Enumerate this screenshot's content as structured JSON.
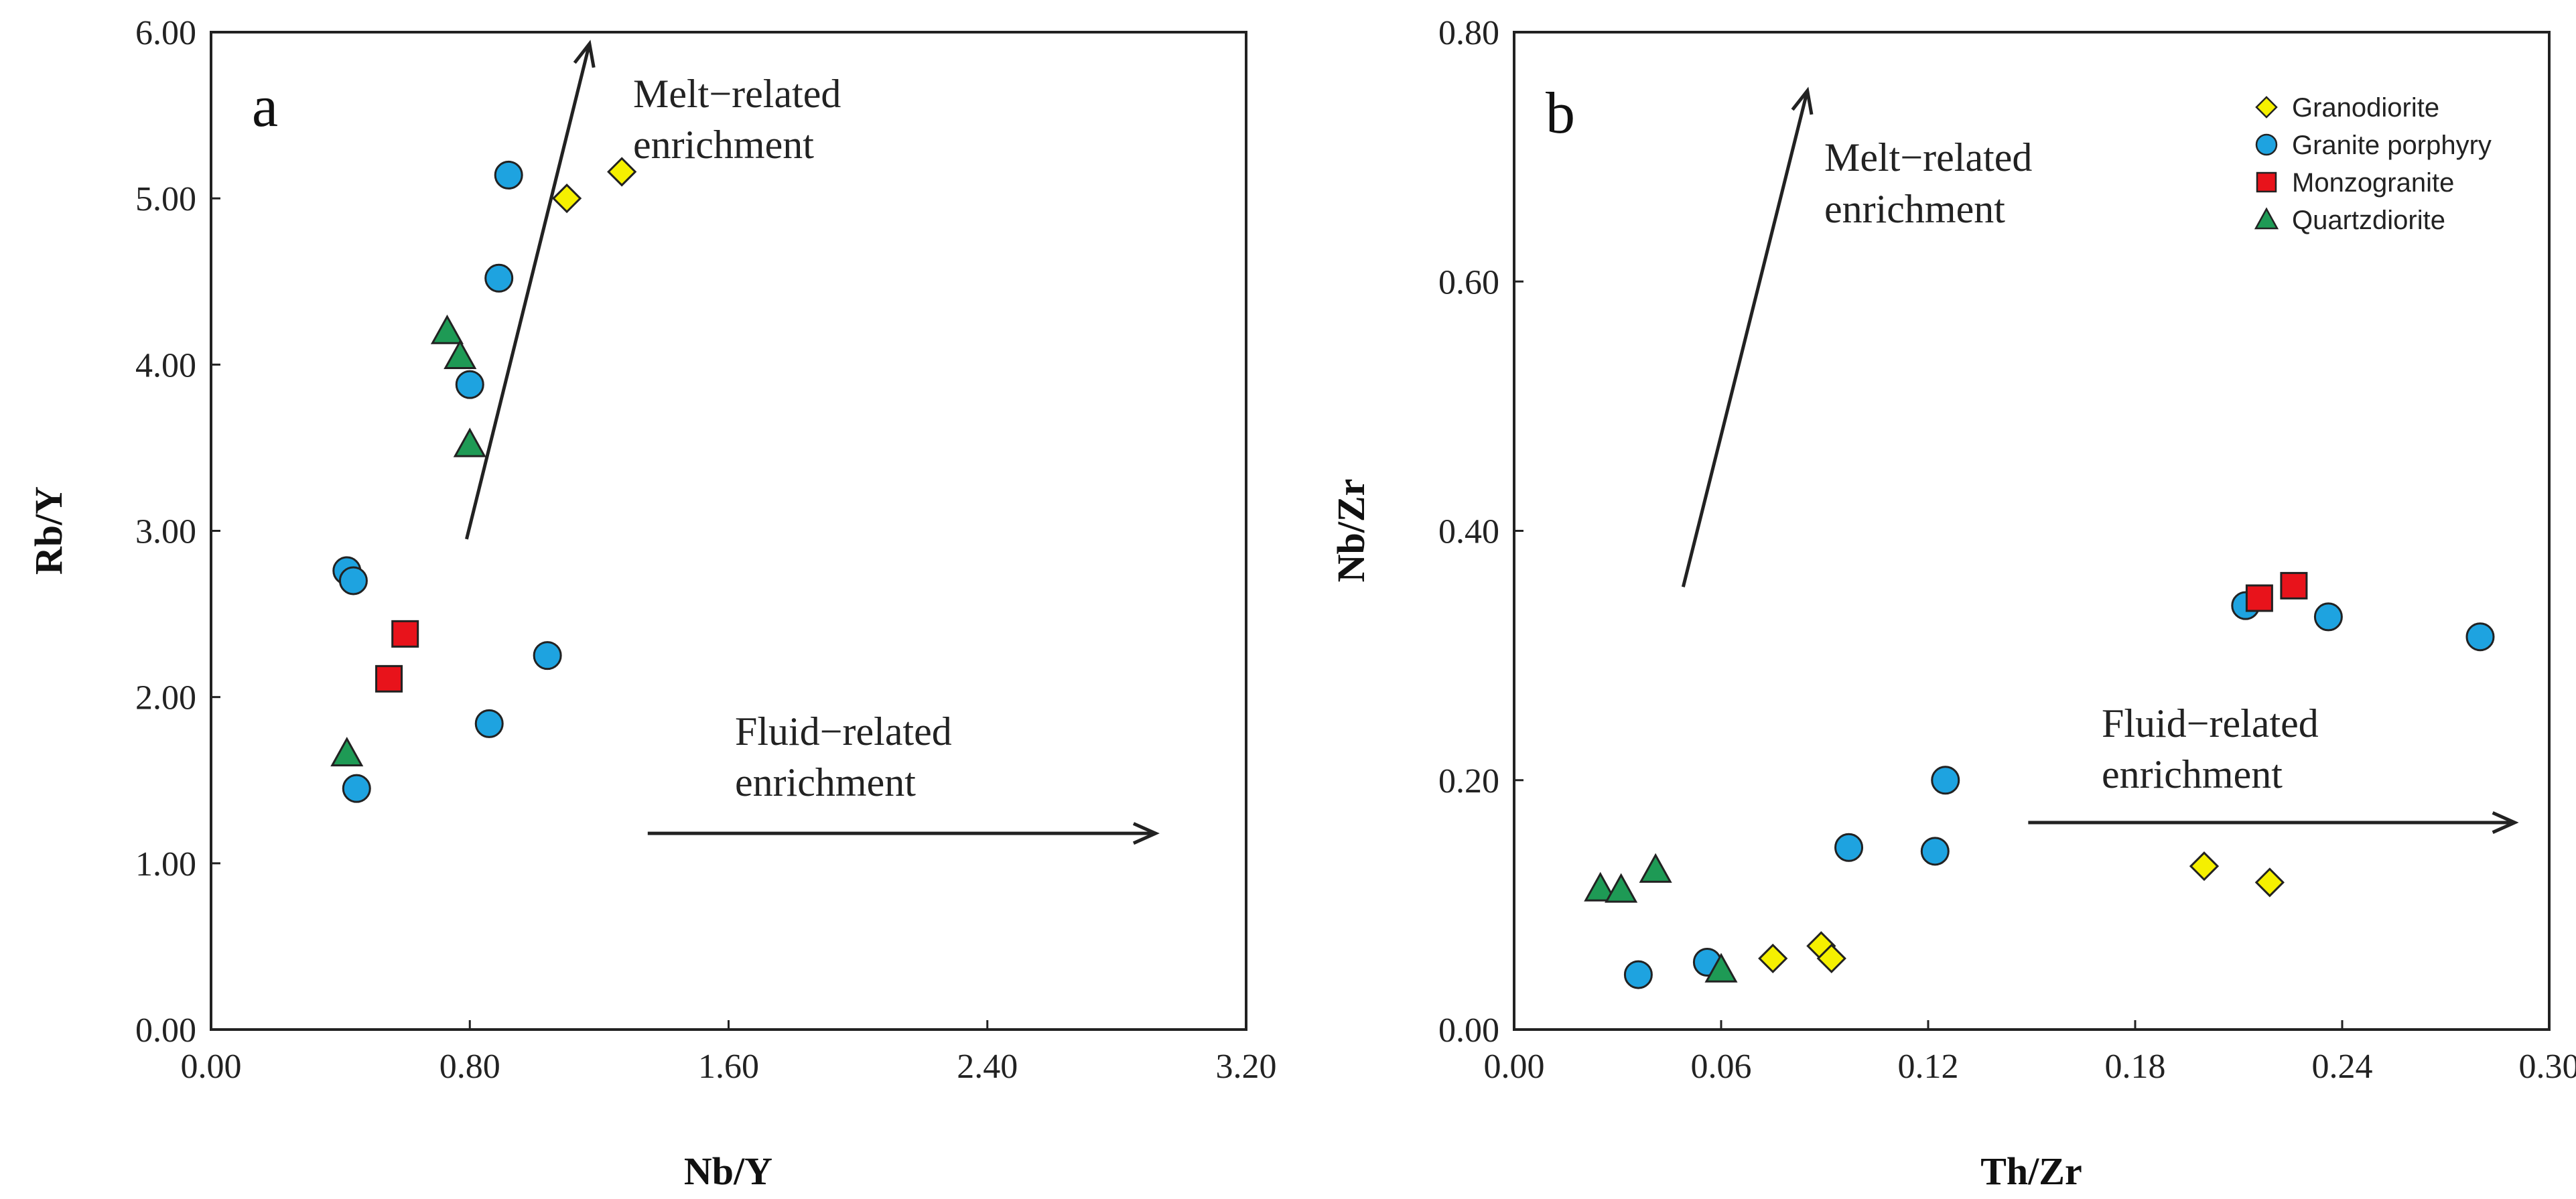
{
  "legend": [
    {
      "key": "granodiorite",
      "label": "Granodiorite",
      "marker": "diamond",
      "color": "#f5f000"
    },
    {
      "key": "granite_porphyry",
      "label": "Granite porphyry",
      "marker": "circle",
      "color": "#1ea3e0"
    },
    {
      "key": "monzogranite",
      "label": "Monzogranite",
      "marker": "square",
      "color": "#e8131b"
    },
    {
      "key": "quartzdiorite",
      "label": "Quartzdiorite",
      "marker": "triangle",
      "color": "#1e9a55"
    }
  ],
  "chart_data": [
    {
      "type": "scatter",
      "panel_label": "a",
      "xlabel": "Nb/Y",
      "ylabel": "Rb/Y",
      "xlim": [
        0,
        3.2
      ],
      "ylim": [
        0,
        6
      ],
      "xticks": [
        "0.00",
        "0.80",
        "1.60",
        "2.40",
        "3.20"
      ],
      "yticks": [
        "0.00",
        "1.00",
        "2.00",
        "3.00",
        "4.00",
        "5.00",
        "6.00"
      ],
      "series": [
        {
          "name": "Granodiorite",
          "points": [
            [
              1.1,
              5.0
            ],
            [
              1.27,
              5.16
            ]
          ]
        },
        {
          "name": "Granite porphyry",
          "points": [
            [
              0.92,
              5.14
            ],
            [
              0.89,
              4.52
            ],
            [
              0.8,
              3.88
            ],
            [
              0.42,
              2.76
            ],
            [
              0.44,
              2.7
            ],
            [
              1.04,
              2.25
            ],
            [
              0.86,
              1.84
            ],
            [
              0.45,
              1.45
            ]
          ]
        },
        {
          "name": "Monzogranite",
          "points": [
            [
              0.6,
              2.38
            ],
            [
              0.55,
              2.11
            ]
          ]
        },
        {
          "name": "Quartzdiorite",
          "points": [
            [
              0.73,
              4.2
            ],
            [
              0.77,
              4.05
            ],
            [
              0.8,
              3.52
            ],
            [
              0.42,
              1.66
            ]
          ]
        }
      ],
      "arrows": [
        {
          "label_lines": [
            "Melt−related",
            "enrichment"
          ],
          "from": [
            0.79,
            2.95
          ],
          "to": [
            1.17,
            5.93
          ]
        },
        {
          "label_lines": [
            "Fluid−related",
            "enrichment"
          ],
          "from": [
            1.35,
            1.18
          ],
          "to": [
            2.92,
            1.18
          ]
        }
      ]
    },
    {
      "type": "scatter",
      "panel_label": "b",
      "xlabel": "Th/Zr",
      "ylabel": "Nb/Zr",
      "xlim": [
        0,
        0.3
      ],
      "ylim": [
        0,
        0.8
      ],
      "xticks": [
        "0.00",
        "0.06",
        "0.12",
        "0.18",
        "0.24",
        "0.30"
      ],
      "yticks": [
        "0.00",
        "0.20",
        "0.40",
        "0.60",
        "0.80"
      ],
      "series": [
        {
          "name": "Granodiorite",
          "points": [
            [
              0.075,
              0.057
            ],
            [
              0.089,
              0.067
            ],
            [
              0.092,
              0.057
            ],
            [
              0.2,
              0.131
            ],
            [
              0.219,
              0.118
            ]
          ]
        },
        {
          "name": "Granite porphyry",
          "points": [
            [
              0.036,
              0.044
            ],
            [
              0.056,
              0.054
            ],
            [
              0.097,
              0.146
            ],
            [
              0.122,
              0.143
            ],
            [
              0.125,
              0.2
            ],
            [
              0.212,
              0.34
            ],
            [
              0.236,
              0.331
            ],
            [
              0.28,
              0.315
            ]
          ]
        },
        {
          "name": "Monzogranite",
          "points": [
            [
              0.216,
              0.346
            ],
            [
              0.226,
              0.356
            ]
          ]
        },
        {
          "name": "Quartzdiorite",
          "points": [
            [
              0.025,
              0.113
            ],
            [
              0.031,
              0.112
            ],
            [
              0.041,
              0.128
            ],
            [
              0.06,
              0.048
            ]
          ]
        }
      ],
      "arrows": [
        {
          "label_lines": [
            "Melt−related",
            "enrichment"
          ],
          "from": [
            0.049,
            0.355
          ],
          "to": [
            0.085,
            0.753
          ]
        },
        {
          "label_lines": [
            "Fluid−related",
            "enrichment"
          ],
          "from": [
            0.149,
            0.166
          ],
          "to": [
            0.29,
            0.166
          ]
        }
      ]
    }
  ]
}
